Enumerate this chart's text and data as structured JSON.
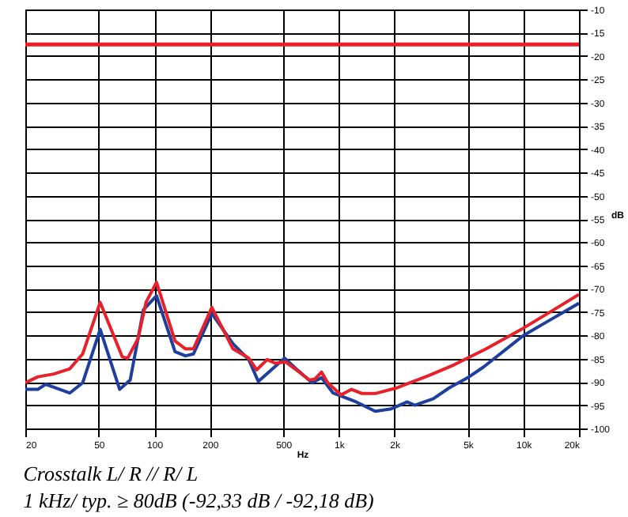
{
  "chart_data": {
    "type": "line",
    "title": "Crosstalk  L/ R  //  R/ L",
    "subtitle": "1 kHz/ typ. ≥ 80dB (-92,33 dB / -92,18 dB)",
    "xlabel": "Hz",
    "ylabel": "dB",
    "log": "x",
    "grid": true,
    "marker": "none",
    "line_style": "solid",
    "xlim": [
      20,
      20000
    ],
    "xticks": [
      20,
      50,
      100,
      200,
      500,
      {
        "value": 1000,
        "label": "1k"
      },
      {
        "value": 2000,
        "label": "2k"
      },
      {
        "value": 5000,
        "label": "5k"
      },
      {
        "value": 10000,
        "label": "10k"
      },
      {
        "value": 20000,
        "label": "20k"
      }
    ],
    "ylim": [
      -100,
      -10
    ],
    "yticks": [
      -100,
      -95,
      -90,
      -85,
      -80,
      -75,
      -70,
      -65,
      -60,
      -55,
      -50,
      -45,
      -40,
      -35,
      -30,
      -25,
      -20,
      -15,
      -10
    ],
    "ref_lines": [
      {
        "axis": "y",
        "value": -17.5,
        "color": "#e8202a"
      }
    ],
    "series": [
      {
        "color": "#1f3f9f",
        "x": [
          20,
          23.4,
          25.8,
          34.8,
          40.9,
          50.9,
          64.9,
          74,
          87.3,
          102.8,
          129.5,
          147.6,
          163,
          205,
          267,
          325,
          366,
          423,
          508,
          588,
          716,
          806,
          931,
          1211,
          1574,
          1919,
          2340,
          2582,
          3250,
          3956,
          4990,
          6080,
          9940,
          13800,
          20000
        ],
        "values": [
          -91.6,
          -91.6,
          -90.5,
          -92.4,
          -90.2,
          -78.7,
          -91.6,
          -89.6,
          -74.5,
          -71.5,
          -83.5,
          -84.4,
          -84.0,
          -75.3,
          -81.8,
          -85.2,
          -89.9,
          -87.7,
          -84.9,
          -87.2,
          -90.2,
          -89.1,
          -92.4,
          -94.1,
          -96.3,
          -95.8,
          -94.3,
          -95.0,
          -93.6,
          -91.3,
          -89.1,
          -86.8,
          -80.1,
          -76.8,
          -73.1
        ]
      },
      {
        "color": "#e8202a",
        "x": [
          20,
          23.4,
          28.5,
          34.8,
          40.9,
          50.9,
          67,
          71.7,
          81.6,
          90.2,
          102.8,
          129.5,
          147.6,
          163,
          205,
          267,
          325,
          359,
          409,
          452,
          515,
          588,
          693,
          740,
          806,
          871,
          1028,
          1172,
          1337,
          1574,
          2052,
          3047,
          4228,
          6282,
          9940,
          13800,
          20000
        ],
        "values": [
          -90.2,
          -88.9,
          -88.3,
          -87.2,
          -84.0,
          -72.9,
          -84.6,
          -84.9,
          -80.7,
          -72.9,
          -68.6,
          -81.2,
          -82.9,
          -82.9,
          -74.0,
          -82.9,
          -84.9,
          -87.4,
          -85.2,
          -86.0,
          -85.7,
          -87.4,
          -89.6,
          -89.4,
          -87.9,
          -90.2,
          -92.8,
          -91.6,
          -92.5,
          -92.5,
          -91.3,
          -88.7,
          -86.3,
          -82.9,
          -78.5,
          -75.1,
          -71.2
        ]
      }
    ]
  }
}
